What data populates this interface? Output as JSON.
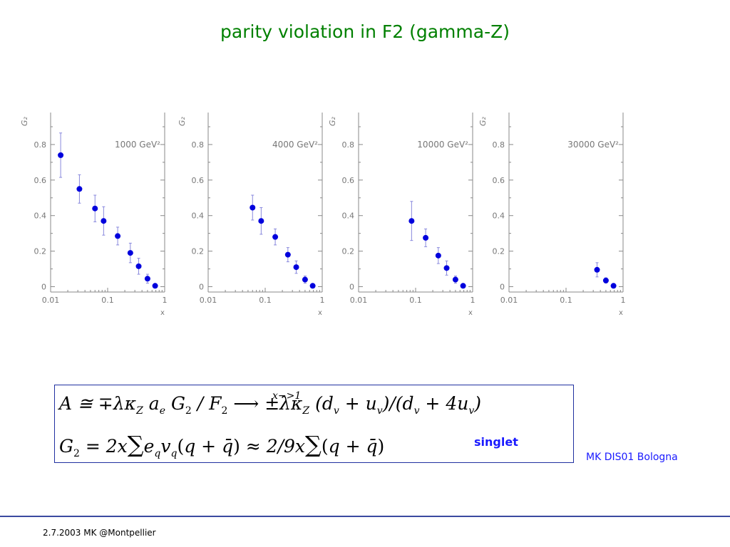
{
  "slide_title": "parity violation in F2 (gamma-Z)",
  "formula": {
    "line1": "A  ≅ ∓λκ_Z a_e G_2 / F_2 ⟶ ±λκ_Z (d_v + u_v)/(d_v + 4u_v)",
    "line1_left": "A  ≅ ∓λκ",
    "line1_mid": "a",
    "line1_mid2": "G",
    "line1_div": "/ F",
    "line1_right": "±λκ",
    "line1_tail": "(d",
    "arrow_label": "x−>1",
    "line2": "G_2 = 2x Σ e_q v_q (q + q̄) ≈ 2/9x Σ (q + q̄)",
    "singlet_label": "singlet"
  },
  "conference_label": "MK DIS01 Bologna",
  "footer": "2.7.2003 MK @Montpellier",
  "colors": {
    "title": "#008000",
    "points": "#0000dd",
    "error_bars": "#8888dd",
    "axes": "#888888",
    "blue_text": "#1a1aff"
  },
  "chart_data": [
    {
      "type": "scatter",
      "annotation": "1000 GeV²",
      "ylabel": "G₂",
      "xlabel": "x",
      "x_scale": "log",
      "xlim": [
        0.01,
        1
      ],
      "ylim": [
        -0.03,
        0.98
      ],
      "x_ticks": [
        "0.01",
        "0.1",
        "1"
      ],
      "y_ticks": [
        "0",
        "0.2",
        "0.4",
        "0.6",
        "0.8"
      ],
      "points": [
        {
          "x": 0.015,
          "y": 0.74,
          "err": 0.125
        },
        {
          "x": 0.032,
          "y": 0.55,
          "err": 0.08
        },
        {
          "x": 0.06,
          "y": 0.44,
          "err": 0.075
        },
        {
          "x": 0.085,
          "y": 0.37,
          "err": 0.08
        },
        {
          "x": 0.15,
          "y": 0.285,
          "err": 0.05
        },
        {
          "x": 0.25,
          "y": 0.19,
          "err": 0.055
        },
        {
          "x": 0.35,
          "y": 0.115,
          "err": 0.045
        },
        {
          "x": 0.5,
          "y": 0.045,
          "err": 0.025
        },
        {
          "x": 0.68,
          "y": 0.005,
          "err": 0.008
        }
      ]
    },
    {
      "type": "scatter",
      "annotation": "4000 GeV²",
      "ylabel": "G₂",
      "xlabel": "x",
      "x_scale": "log",
      "xlim": [
        0.01,
        1
      ],
      "ylim": [
        -0.03,
        0.98
      ],
      "x_ticks": [
        "0.01",
        "0.1",
        "1"
      ],
      "y_ticks": [
        "0",
        "0.2",
        "0.4",
        "0.6",
        "0.8"
      ],
      "points": [
        {
          "x": 0.06,
          "y": 0.445,
          "err": 0.07
        },
        {
          "x": 0.085,
          "y": 0.37,
          "err": 0.075
        },
        {
          "x": 0.15,
          "y": 0.28,
          "err": 0.045
        },
        {
          "x": 0.25,
          "y": 0.18,
          "err": 0.04
        },
        {
          "x": 0.35,
          "y": 0.11,
          "err": 0.035
        },
        {
          "x": 0.5,
          "y": 0.04,
          "err": 0.02
        },
        {
          "x": 0.68,
          "y": 0.005,
          "err": 0.008
        }
      ]
    },
    {
      "type": "scatter",
      "annotation": "10000 GeV²",
      "ylabel": "G₂",
      "xlabel": "x",
      "x_scale": "log",
      "xlim": [
        0.01,
        1
      ],
      "ylim": [
        -0.03,
        0.98
      ],
      "x_ticks": [
        "0.01",
        "0.1",
        "1"
      ],
      "y_ticks": [
        "0",
        "0.2",
        "0.4",
        "0.6",
        "0.8"
      ],
      "points": [
        {
          "x": 0.085,
          "y": 0.37,
          "err": 0.11
        },
        {
          "x": 0.15,
          "y": 0.275,
          "err": 0.05
        },
        {
          "x": 0.25,
          "y": 0.175,
          "err": 0.045
        },
        {
          "x": 0.35,
          "y": 0.105,
          "err": 0.04
        },
        {
          "x": 0.5,
          "y": 0.04,
          "err": 0.02
        },
        {
          "x": 0.68,
          "y": 0.005,
          "err": 0.008
        }
      ]
    },
    {
      "type": "scatter",
      "annotation": "30000 GeV²",
      "ylabel": "G₂",
      "xlabel": "x",
      "x_scale": "log",
      "xlim": [
        0.01,
        1
      ],
      "ylim": [
        -0.03,
        0.98
      ],
      "x_ticks": [
        "0.01",
        "0.1",
        "1"
      ],
      "y_ticks": [
        "0",
        "0.2",
        "0.4",
        "0.6",
        "0.8"
      ],
      "points": [
        {
          "x": 0.35,
          "y": 0.095,
          "err": 0.04
        },
        {
          "x": 0.5,
          "y": 0.035,
          "err": 0.015
        },
        {
          "x": 0.68,
          "y": 0.005,
          "err": 0.008
        }
      ]
    }
  ]
}
